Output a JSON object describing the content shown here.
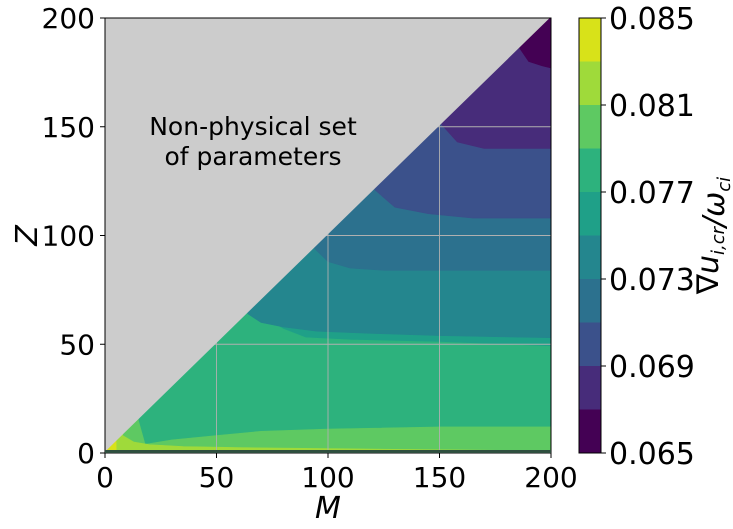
{
  "chart_data": {
    "type": "heatmap",
    "subtype": "filled-contour",
    "title": "",
    "xlabel": "M",
    "ylabel": "Z",
    "xlim": [
      0,
      200
    ],
    "ylim": [
      0,
      200
    ],
    "grid": true,
    "x_ticks": [
      "0",
      "50",
      "100",
      "150",
      "200"
    ],
    "y_ticks": [
      "0",
      "50",
      "100",
      "150",
      "200"
    ],
    "colorbar": {
      "label": "∇u_{i,cr}/ω_{ci}",
      "range": [
        0.065,
        0.085
      ],
      "tick_labels": [
        "0.065",
        "0.069",
        "0.073",
        "0.077",
        "0.081",
        "0.085"
      ],
      "levels": [
        0.065,
        0.067,
        0.069,
        0.071,
        0.073,
        0.075,
        0.077,
        0.079,
        0.081,
        0.083,
        0.085
      ],
      "colors": [
        "#481467",
        "#472d7b",
        "#3b518b",
        "#2c718e",
        "#21908d",
        "#27ad81",
        "#5cc863",
        "#aadc32",
        "#fde725"
      ],
      "band_colors": [
        "#440154",
        "#472c7a",
        "#3b518b",
        "#2c718e",
        "#24868e",
        "#1fa088",
        "#2db27d",
        "#5ec962",
        "#9fda3a",
        "#d8e219"
      ]
    },
    "nonphysical_region": {
      "condition": "Z > M",
      "color": "#cccccc",
      "annotation": "Non-physical set of parameters",
      "annotation_lines": [
        "Non-physical set",
        "of parameters"
      ]
    }
  }
}
